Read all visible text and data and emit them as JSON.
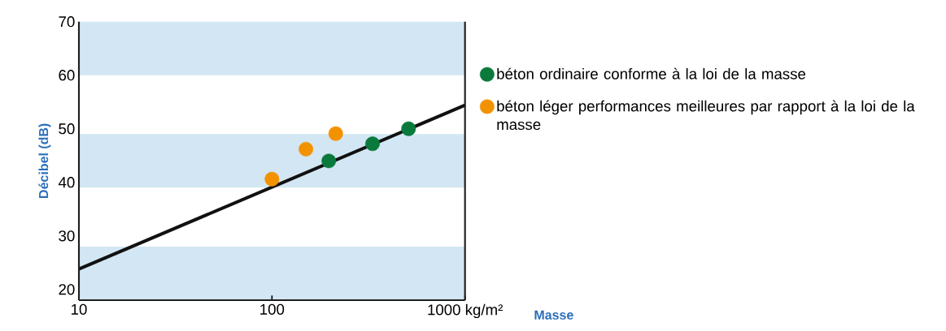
{
  "chart_data": {
    "type": "scatter",
    "xlabel": "Masse",
    "ylabel": "Décibel (dB)",
    "log": "x",
    "xlim": [
      10,
      1000
    ],
    "ylim": [
      18,
      70
    ],
    "xticks": [
      10,
      100,
      {
        "value": 1000,
        "label": "1000 kg/m²"
      }
    ],
    "yticks": [
      20,
      30,
      40,
      50,
      60,
      70
    ],
    "grid": false,
    "legend": "right",
    "bands": [
      {
        "axis": "y",
        "from": 60,
        "to": 70,
        "color": "#d2e7f3"
      },
      {
        "axis": "y",
        "from": 39,
        "to": 49,
        "color": "#d2e7f3"
      },
      {
        "axis": "y",
        "from": 18,
        "to": 28,
        "color": "#d2e7f3"
      }
    ],
    "series": [
      {
        "type": "line",
        "marker": "none",
        "color": "#111111",
        "x": [
          10,
          1000
        ],
        "values": [
          23.8,
          54.4
        ]
      },
      {
        "name": "béton ordinaire conforme à la loi de la masse",
        "marker": "circle",
        "color": "#0a7a3c",
        "x": [
          197,
          332,
          510
        ],
        "values": [
          44.0,
          47.2,
          50.0
        ]
      },
      {
        "name": "béton léger performances meilleures par rapport à la loi de la masse",
        "marker": "circle",
        "color": "#f39200",
        "x": [
          100,
          150,
          214
        ],
        "values": [
          40.6,
          46.2,
          49.1
        ]
      }
    ]
  }
}
